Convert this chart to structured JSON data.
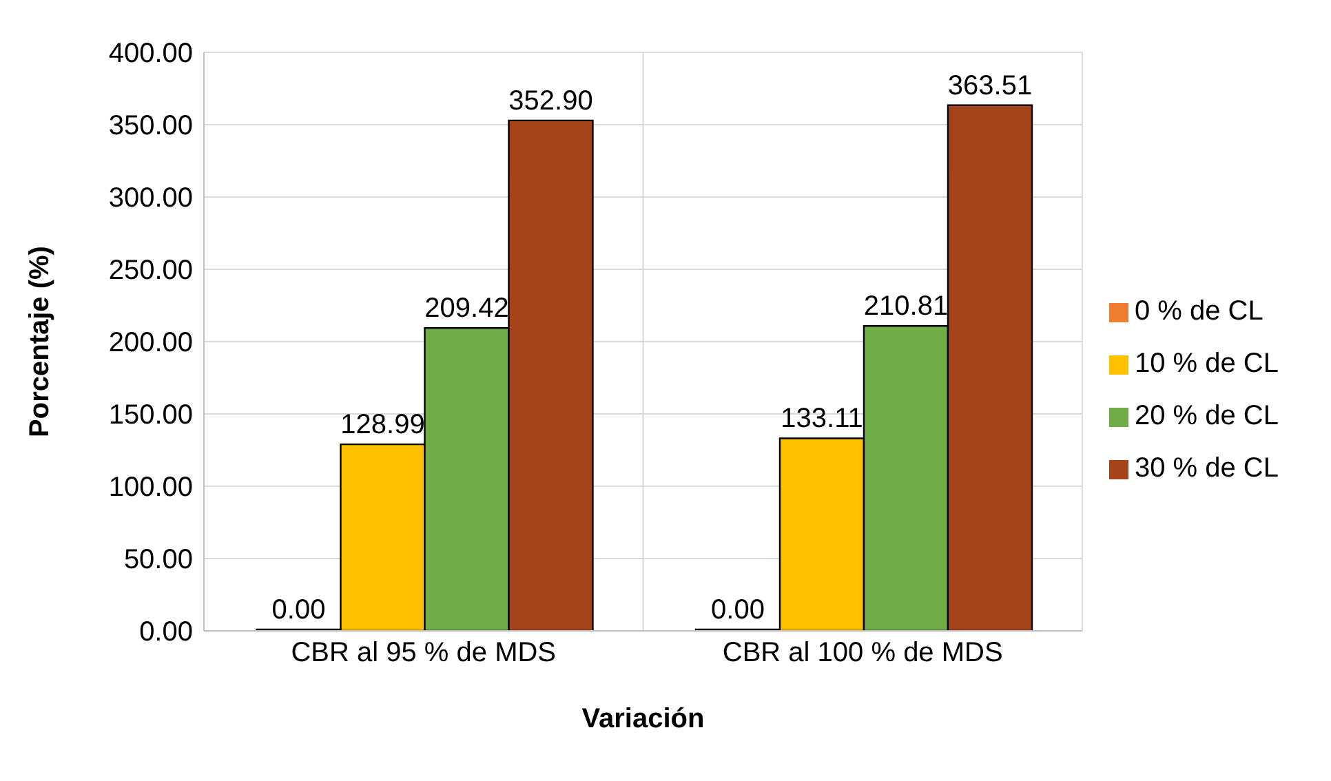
{
  "chart_data": {
    "type": "bar",
    "xlabel": "Variación",
    "ylabel": "Porcentaje (%)",
    "categories": [
      "CBR al 95 % de MDS",
      "CBR al 100 % de MDS"
    ],
    "series": [
      {
        "name": "0 % de CL",
        "color": "#ed7d31",
        "values": [
          0,
          0
        ],
        "value_labels": [
          "0.00",
          "0.00"
        ]
      },
      {
        "name": "10 % de CL",
        "color": "#ffc000",
        "values": [
          128.99,
          133.11
        ],
        "value_labels": [
          "128.99",
          "133.11"
        ]
      },
      {
        "name": "20 % de CL",
        "color": "#70ad47",
        "values": [
          209.42,
          210.81
        ],
        "value_labels": [
          "209.42",
          "210.81"
        ]
      },
      {
        "name": "30 % de CL",
        "color": "#a5441b",
        "values": [
          352.9,
          363.51
        ],
        "value_labels": [
          "352.90",
          "363.51"
        ]
      }
    ],
    "ylim": [
      0,
      400
    ],
    "yticks": [
      {
        "value": 0,
        "label": "0.00"
      },
      {
        "value": 50,
        "label": "50.00"
      },
      {
        "value": 100,
        "label": "100.00"
      },
      {
        "value": 150,
        "label": "150.00"
      },
      {
        "value": 200,
        "label": "200.00"
      },
      {
        "value": 250,
        "label": "250.00"
      },
      {
        "value": 300,
        "label": "300.00"
      },
      {
        "value": 350,
        "label": "350.00"
      },
      {
        "value": 400,
        "label": "400.00"
      }
    ],
    "grid": true,
    "legend": "right"
  }
}
